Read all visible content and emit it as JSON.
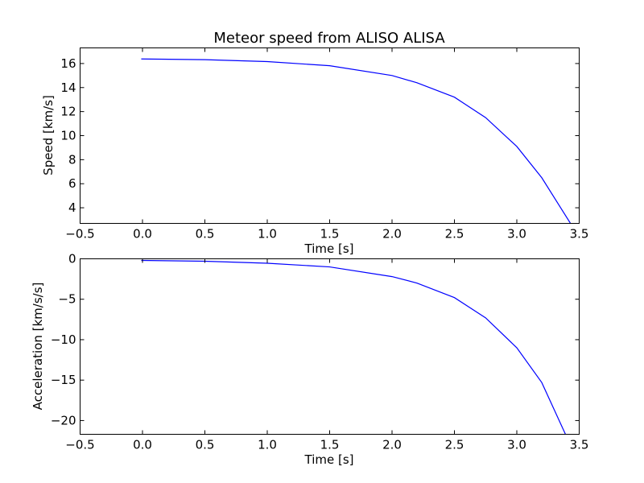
{
  "chart_data": [
    {
      "type": "line",
      "title": "Meteor speed from  ALISO ALISA",
      "xlabel": "Time [s]",
      "ylabel": "Speed [km/s]",
      "xlim": [
        -0.5,
        3.5
      ],
      "ylim": [
        2.7,
        17.3
      ],
      "xticks": [
        -0.5,
        0.0,
        0.5,
        1.0,
        1.5,
        2.0,
        2.5,
        3.0,
        3.5
      ],
      "xtick_labels": [
        "−0.5",
        "0.0",
        "0.5",
        "1.0",
        "1.5",
        "2.0",
        "2.5",
        "3.0",
        "3.5"
      ],
      "yticks": [
        4,
        6,
        8,
        10,
        12,
        14,
        16
      ],
      "ytick_labels": [
        "4",
        "6",
        "8",
        "10",
        "12",
        "14",
        "16"
      ],
      "grid": false,
      "color": "#0000ff",
      "series": [
        {
          "x": [
            -0.01,
            0.0,
            0.5,
            1.0,
            1.5,
            2.0,
            2.2,
            2.5,
            2.75,
            3.0,
            3.2,
            3.43
          ],
          "y": [
            16.38,
            16.38,
            16.32,
            16.16,
            15.82,
            15.0,
            14.4,
            13.2,
            11.5,
            9.1,
            6.5,
            2.7
          ]
        }
      ]
    },
    {
      "type": "line",
      "title": "",
      "xlabel": "Time [s]",
      "ylabel": "Acceleration [km/s/s]",
      "xlim": [
        -0.5,
        3.5
      ],
      "ylim": [
        -21.7,
        0.0
      ],
      "xticks": [
        -0.5,
        0.0,
        0.5,
        1.0,
        1.5,
        2.0,
        2.5,
        3.0,
        3.5
      ],
      "xtick_labels": [
        "−0.5",
        "0.0",
        "0.5",
        "1.0",
        "1.5",
        "2.0",
        "2.5",
        "3.0",
        "3.5"
      ],
      "yticks": [
        0,
        -5,
        -10,
        -15,
        -20
      ],
      "ytick_labels": [
        "0",
        "−5",
        "−10",
        "−15",
        "−20"
      ],
      "grid": false,
      "color": "#0000ff",
      "series": [
        {
          "x": [
            -0.01,
            0.0,
            0.5,
            1.0,
            1.5,
            2.0,
            2.2,
            2.5,
            2.75,
            3.0,
            3.2,
            3.39
          ],
          "y": [
            -0.2,
            -0.2,
            -0.3,
            -0.55,
            -1.0,
            -2.2,
            -3.0,
            -4.8,
            -7.3,
            -11.0,
            -15.3,
            -21.7
          ]
        }
      ]
    }
  ]
}
